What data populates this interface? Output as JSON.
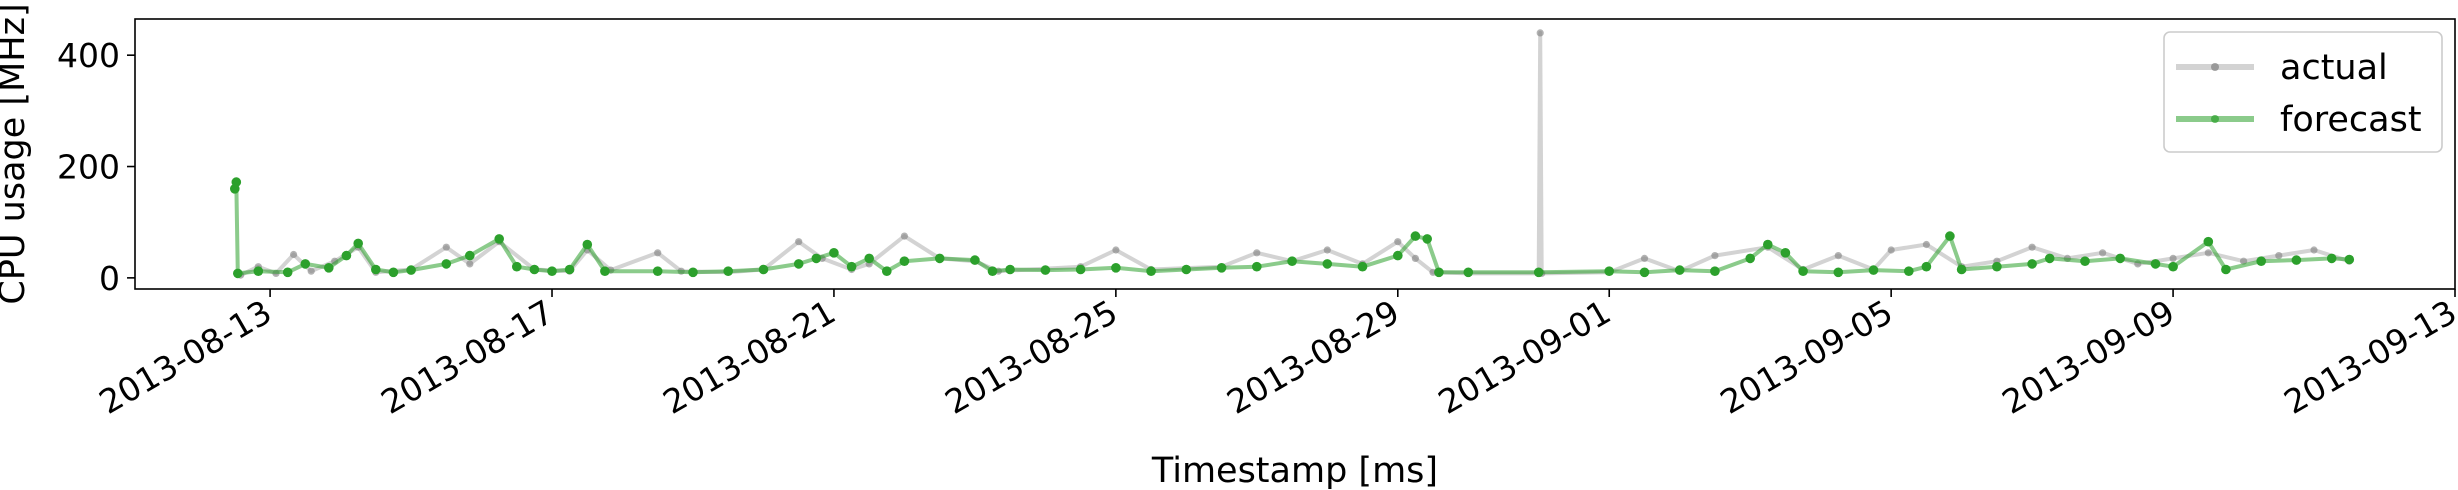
{
  "chart_data": {
    "type": "line",
    "xlabel": "Timestamp [ms]",
    "ylabel": "CPU usage [MHz]",
    "xlim": [
      "2013-08-11T02:00",
      "2013-09-13T00:00"
    ],
    "ylim": [
      -20,
      465
    ],
    "x_ticks": [
      "2013-08-13",
      "2013-08-17",
      "2013-08-21",
      "2013-08-25",
      "2013-08-29",
      "2013-09-01",
      "2013-09-05",
      "2013-09-09",
      "2013-09-13"
    ],
    "y_ticks": [
      0,
      200,
      400
    ],
    "grid": false,
    "legend": "top-right",
    "series": [
      {
        "name": "actual",
        "color": "#808080",
        "points": [
          [
            "2013-08-12T14:00",
            5
          ],
          [
            "2013-08-12T20:00",
            20
          ],
          [
            "2013-08-13T02:00",
            8
          ],
          [
            "2013-08-13T08:00",
            42
          ],
          [
            "2013-08-13T14:00",
            12
          ],
          [
            "2013-08-13T22:00",
            30
          ],
          [
            "2013-08-14T06:00",
            55
          ],
          [
            "2013-08-14T12:00",
            10
          ],
          [
            "2013-08-15T00:00",
            15
          ],
          [
            "2013-08-15T12:00",
            55
          ],
          [
            "2013-08-15T20:00",
            25
          ],
          [
            "2013-08-16T06:00",
            65
          ],
          [
            "2013-08-16T18:00",
            15
          ],
          [
            "2013-08-17T06:00",
            12
          ],
          [
            "2013-08-17T12:00",
            50
          ],
          [
            "2013-08-17T20:00",
            14
          ],
          [
            "2013-08-18T12:00",
            45
          ],
          [
            "2013-08-18T20:00",
            12
          ],
          [
            "2013-08-19T12:00",
            10
          ],
          [
            "2013-08-20T00:00",
            15
          ],
          [
            "2013-08-20T12:00",
            65
          ],
          [
            "2013-08-20T20:00",
            35
          ],
          [
            "2013-08-21T06:00",
            15
          ],
          [
            "2013-08-21T12:00",
            25
          ],
          [
            "2013-08-22T00:00",
            75
          ],
          [
            "2013-08-22T12:00",
            35
          ],
          [
            "2013-08-23T00:00",
            30
          ],
          [
            "2013-08-23T08:00",
            12
          ],
          [
            "2013-08-24T12:00",
            20
          ],
          [
            "2013-08-25T00:00",
            50
          ],
          [
            "2013-08-25T12:00",
            15
          ],
          [
            "2013-08-26T12:00",
            20
          ],
          [
            "2013-08-27T00:00",
            45
          ],
          [
            "2013-08-27T12:00",
            30
          ],
          [
            "2013-08-28T00:00",
            50
          ],
          [
            "2013-08-28T12:00",
            25
          ],
          [
            "2013-08-29T00:00",
            65
          ],
          [
            "2013-08-29T06:00",
            35
          ],
          [
            "2013-08-29T12:00",
            10
          ],
          [
            "2013-08-30T00:00",
            8
          ],
          [
            "2013-08-31T00:00",
            8
          ],
          [
            "2013-08-31T00:30",
            440
          ],
          [
            "2013-08-31T01:00",
            8
          ],
          [
            "2013-09-01T00:00",
            10
          ],
          [
            "2013-09-01T12:00",
            35
          ],
          [
            "2013-09-02T00:00",
            12
          ],
          [
            "2013-09-02T12:00",
            40
          ],
          [
            "2013-09-03T06:00",
            55
          ],
          [
            "2013-09-03T18:00",
            15
          ],
          [
            "2013-09-04T06:00",
            40
          ],
          [
            "2013-09-04T18:00",
            15
          ],
          [
            "2013-09-05T00:00",
            50
          ],
          [
            "2013-09-05T12:00",
            60
          ],
          [
            "2013-09-06T00:00",
            20
          ],
          [
            "2013-09-06T12:00",
            30
          ],
          [
            "2013-09-07T00:00",
            55
          ],
          [
            "2013-09-07T12:00",
            35
          ],
          [
            "2013-09-08T00:00",
            45
          ],
          [
            "2013-09-08T12:00",
            25
          ],
          [
            "2013-09-09T00:00",
            35
          ],
          [
            "2013-09-09T12:00",
            45
          ],
          [
            "2013-09-10T00:00",
            30
          ],
          [
            "2013-09-10T12:00",
            40
          ],
          [
            "2013-09-11T00:00",
            50
          ],
          [
            "2013-09-11T12:00",
            30
          ]
        ]
      },
      {
        "name": "forecast",
        "color": "#2ca02c",
        "points": [
          [
            "2013-08-12T12:00",
            160
          ],
          [
            "2013-08-12T12:30",
            172
          ],
          [
            "2013-08-12T13:00",
            8
          ],
          [
            "2013-08-12T20:00",
            12
          ],
          [
            "2013-08-13T06:00",
            10
          ],
          [
            "2013-08-13T12:00",
            25
          ],
          [
            "2013-08-13T20:00",
            18
          ],
          [
            "2013-08-14T02:00",
            40
          ],
          [
            "2013-08-14T06:00",
            62
          ],
          [
            "2013-08-14T12:00",
            15
          ],
          [
            "2013-08-14T18:00",
            10
          ],
          [
            "2013-08-15T00:00",
            14
          ],
          [
            "2013-08-15T12:00",
            25
          ],
          [
            "2013-08-15T20:00",
            40
          ],
          [
            "2013-08-16T06:00",
            70
          ],
          [
            "2013-08-16T12:00",
            20
          ],
          [
            "2013-08-16T18:00",
            15
          ],
          [
            "2013-08-17T00:00",
            12
          ],
          [
            "2013-08-17T06:00",
            15
          ],
          [
            "2013-08-17T12:00",
            60
          ],
          [
            "2013-08-17T18:00",
            12
          ],
          [
            "2013-08-18T12:00",
            12
          ],
          [
            "2013-08-19T00:00",
            10
          ],
          [
            "2013-08-19T12:00",
            12
          ],
          [
            "2013-08-20T00:00",
            15
          ],
          [
            "2013-08-20T12:00",
            25
          ],
          [
            "2013-08-20T18:00",
            35
          ],
          [
            "2013-08-21T00:00",
            45
          ],
          [
            "2013-08-21T06:00",
            20
          ],
          [
            "2013-08-21T12:00",
            35
          ],
          [
            "2013-08-21T18:00",
            12
          ],
          [
            "2013-08-22T00:00",
            30
          ],
          [
            "2013-08-22T12:00",
            35
          ],
          [
            "2013-08-23T00:00",
            32
          ],
          [
            "2013-08-23T06:00",
            12
          ],
          [
            "2013-08-23T12:00",
            15
          ],
          [
            "2013-08-24T00:00",
            14
          ],
          [
            "2013-08-24T12:00",
            15
          ],
          [
            "2013-08-25T00:00",
            18
          ],
          [
            "2013-08-25T12:00",
            12
          ],
          [
            "2013-08-26T00:00",
            15
          ],
          [
            "2013-08-26T12:00",
            18
          ],
          [
            "2013-08-27T00:00",
            20
          ],
          [
            "2013-08-27T12:00",
            30
          ],
          [
            "2013-08-28T00:00",
            25
          ],
          [
            "2013-08-28T12:00",
            20
          ],
          [
            "2013-08-29T00:00",
            40
          ],
          [
            "2013-08-29T06:00",
            75
          ],
          [
            "2013-08-29T10:00",
            70
          ],
          [
            "2013-08-29T14:00",
            10
          ],
          [
            "2013-08-30T00:00",
            10
          ],
          [
            "2013-08-31T00:00",
            10
          ],
          [
            "2013-09-01T00:00",
            12
          ],
          [
            "2013-09-01T12:00",
            10
          ],
          [
            "2013-09-02T00:00",
            14
          ],
          [
            "2013-09-02T12:00",
            12
          ],
          [
            "2013-09-03T00:00",
            35
          ],
          [
            "2013-09-03T06:00",
            60
          ],
          [
            "2013-09-03T12:00",
            45
          ],
          [
            "2013-09-03T18:00",
            12
          ],
          [
            "2013-09-04T06:00",
            10
          ],
          [
            "2013-09-04T18:00",
            14
          ],
          [
            "2013-09-05T06:00",
            12
          ],
          [
            "2013-09-05T12:00",
            20
          ],
          [
            "2013-09-05T20:00",
            75
          ],
          [
            "2013-09-06T00:00",
            15
          ],
          [
            "2013-09-06T12:00",
            20
          ],
          [
            "2013-09-07T00:00",
            25
          ],
          [
            "2013-09-07T06:00",
            35
          ],
          [
            "2013-09-07T18:00",
            30
          ],
          [
            "2013-09-08T06:00",
            35
          ],
          [
            "2013-09-08T18:00",
            25
          ],
          [
            "2013-09-09T00:00",
            20
          ],
          [
            "2013-09-09T12:00",
            65
          ],
          [
            "2013-09-09T18:00",
            15
          ],
          [
            "2013-09-10T06:00",
            30
          ],
          [
            "2013-09-10T18:00",
            32
          ],
          [
            "2013-09-11T06:00",
            35
          ],
          [
            "2013-09-11T12:00",
            33
          ]
        ]
      }
    ]
  }
}
